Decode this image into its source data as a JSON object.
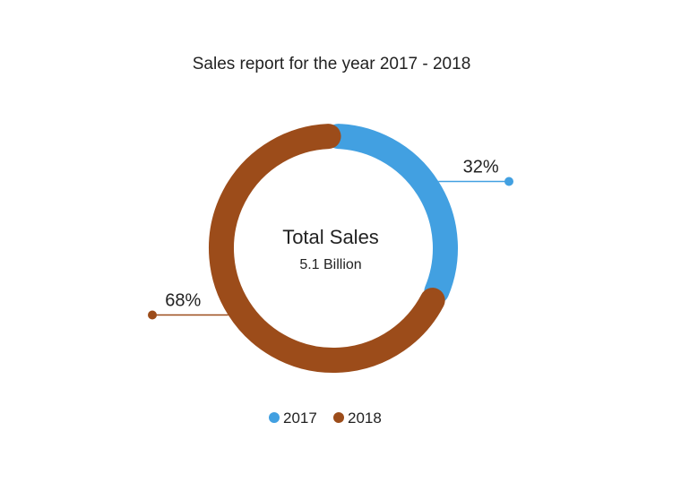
{
  "chart_data": {
    "type": "pie",
    "title": "Sales report for the year 2017 - 2018",
    "center_title": "Total Sales",
    "center_subtitle": "5.1 Billion",
    "categories": [
      "2017",
      "2018"
    ],
    "values": [
      32,
      68
    ],
    "data_labels": [
      "32%",
      "68%"
    ],
    "colors": [
      "#42A0E1",
      "#9C4C1A"
    ],
    "legend": {
      "entries": [
        "2017",
        "2018"
      ],
      "position": "bottom"
    }
  }
}
